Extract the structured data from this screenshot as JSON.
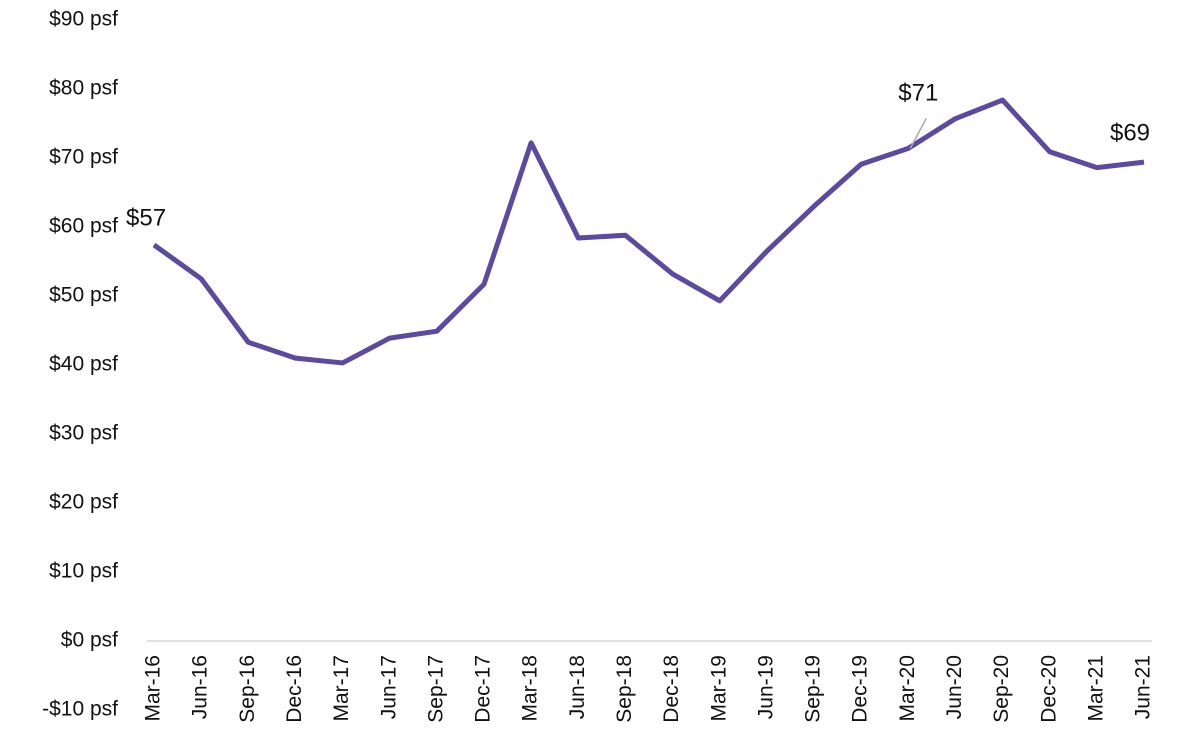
{
  "chart_data": {
    "type": "line",
    "categories": [
      "Mar-16",
      "Jun-16",
      "Sep-16",
      "Dec-16",
      "Mar-17",
      "Jun-17",
      "Sep-17",
      "Dec-17",
      "Mar-18",
      "Jun-18",
      "Sep-18",
      "Dec-18",
      "Mar-19",
      "Jun-19",
      "Sep-19",
      "Dec-19",
      "Mar-20",
      "Jun-20",
      "Sep-20",
      "Dec-20",
      "Mar-21",
      "Jun-21"
    ],
    "series": [
      {
        "color": "#5b4a9f",
        "values": [
          57.4,
          52.5,
          43.3,
          41.0,
          40.3,
          43.9,
          44.9,
          51.7,
          72.2,
          58.4,
          58.8,
          53.2,
          49.3,
          56.5,
          63.0,
          69.1,
          71.4,
          75.7,
          78.4,
          70.9,
          68.6,
          69.4
        ],
        "value_labels": [
          "$57",
          null,
          null,
          null,
          null,
          null,
          null,
          null,
          null,
          null,
          null,
          null,
          null,
          null,
          null,
          null,
          "$71",
          null,
          null,
          null,
          null,
          "$69"
        ]
      }
    ],
    "ylim": [
      -10,
      90
    ],
    "yticks": [
      {
        "value": -10,
        "label": "-$10 psf"
      },
      {
        "value": 0,
        "label": "$0 psf"
      },
      {
        "value": 10,
        "label": "$10 psf"
      },
      {
        "value": 20,
        "label": "$20 psf"
      },
      {
        "value": 30,
        "label": "$30 psf"
      },
      {
        "value": 40,
        "label": "$40 psf"
      },
      {
        "value": 50,
        "label": "$50 psf"
      },
      {
        "value": 60,
        "label": "$60 psf"
      },
      {
        "value": 70,
        "label": "$70 psf"
      },
      {
        "value": 80,
        "label": "$80 psf"
      },
      {
        "value": 90,
        "label": "$90 psf"
      }
    ],
    "grid": false
  }
}
